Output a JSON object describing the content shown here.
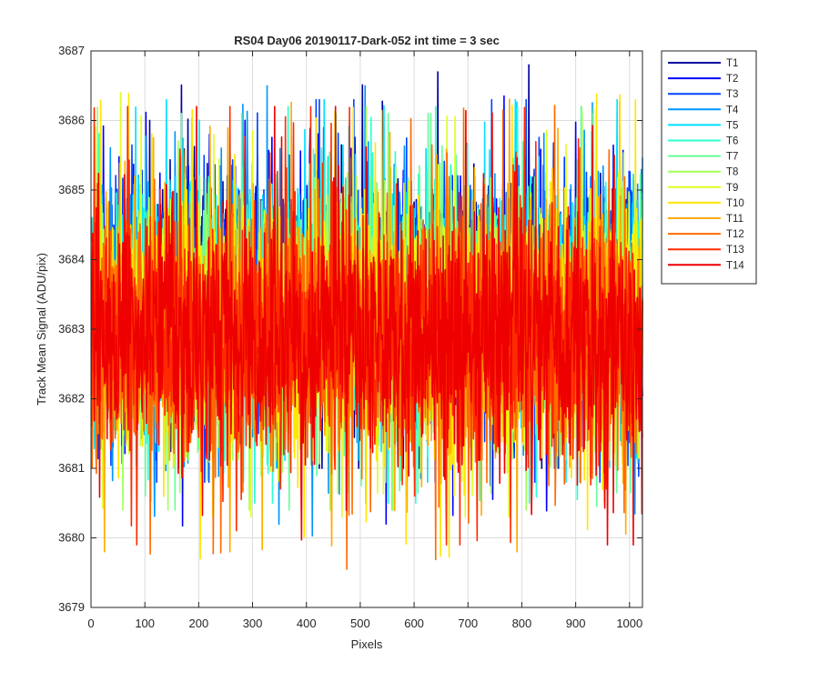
{
  "chart_data": {
    "type": "line",
    "title": "RS04 Day06 20190117-Dark-052 int time = 3 sec",
    "xlabel": "Pixels",
    "ylabel": "Track Mean Signal (ADU/pix)",
    "xlim": [
      0,
      1024
    ],
    "ylim": [
      3679,
      3687
    ],
    "xticks": [
      0,
      100,
      200,
      300,
      400,
      500,
      600,
      700,
      800,
      900,
      1000
    ],
    "yticks": [
      3679,
      3680,
      3681,
      3682,
      3683,
      3684,
      3685,
      3686,
      3687
    ],
    "grid": true,
    "legend_position": "outside-top-right",
    "n_points": 1024,
    "series": [
      {
        "name": "T1",
        "color": "#00009c",
        "center": 3683.5,
        "low": 3681.0,
        "high": 3686.8
      },
      {
        "name": "T2",
        "color": "#0000ff",
        "center": 3683.5,
        "low": 3680.1,
        "high": 3686.6
      },
      {
        "name": "T3",
        "color": "#0044ff",
        "center": 3683.4,
        "low": 3680.8,
        "high": 3686.3
      },
      {
        "name": "T4",
        "color": "#0095ff",
        "center": 3683.3,
        "low": 3679.5,
        "high": 3686.5
      },
      {
        "name": "T5",
        "color": "#00e0ff",
        "center": 3683.3,
        "low": 3680.8,
        "high": 3686.3
      },
      {
        "name": "T6",
        "color": "#2cffd2",
        "center": 3683.2,
        "low": 3680.5,
        "high": 3686.2
      },
      {
        "name": "T7",
        "color": "#66ff99",
        "center": 3683.2,
        "low": 3680.4,
        "high": 3686.1
      },
      {
        "name": "T8",
        "color": "#a3ff5c",
        "center": 3683.1,
        "low": 3680.4,
        "high": 3686.2
      },
      {
        "name": "T9",
        "color": "#e0ff1f",
        "center": 3683.1,
        "low": 3680.3,
        "high": 3686.4
      },
      {
        "name": "T10",
        "color": "#ffe600",
        "center": 3683.0,
        "low": 3679.4,
        "high": 3686.7
      },
      {
        "name": "T11",
        "color": "#ffab00",
        "center": 3683.0,
        "low": 3679.8,
        "high": 3686.5
      },
      {
        "name": "T12",
        "color": "#ff6a00",
        "center": 3682.9,
        "low": 3679.5,
        "high": 3686.4
      },
      {
        "name": "T13",
        "color": "#ff2b00",
        "center": 3682.9,
        "low": 3679.9,
        "high": 3686.2
      },
      {
        "name": "T14",
        "color": "#ee0000",
        "center": 3682.9,
        "low": 3679.9,
        "high": 3686.2
      }
    ]
  }
}
